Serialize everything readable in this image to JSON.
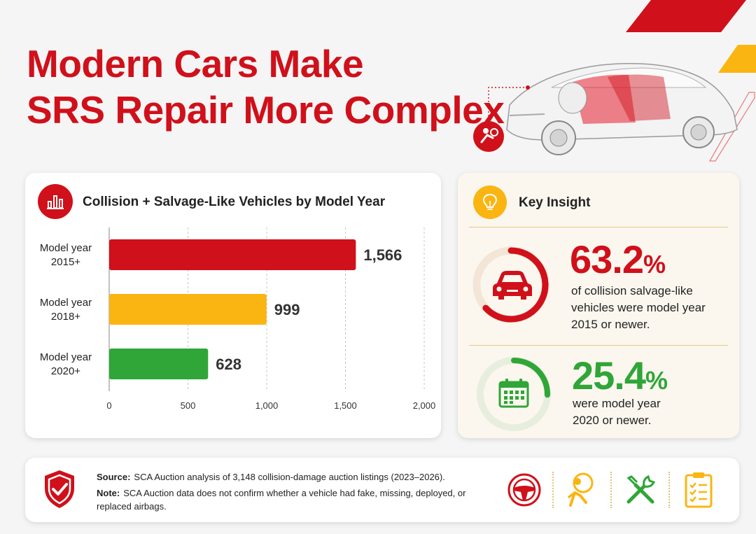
{
  "header": {
    "title_line1": "Modern Cars Make",
    "title_line2": "SRS Repair More Complex"
  },
  "colors": {
    "red": "#d0101a",
    "yellow": "#fbb512",
    "green": "#2fa637"
  },
  "chart_card": {
    "title": "Collision + Salvage-Like Vehicles by Model Year",
    "icon": "bar-chart-icon"
  },
  "chart_data": {
    "type": "bar",
    "orientation": "horizontal",
    "title": "Collision + Salvage-Like Vehicles by Model Year",
    "categories": [
      [
        "Model year",
        "2015+"
      ],
      [
        "Model year",
        "2018+"
      ],
      [
        "Model year",
        "2020+"
      ]
    ],
    "values": [
      1566,
      999,
      628
    ],
    "value_labels": [
      "1,566",
      "999",
      "628"
    ],
    "colors": [
      "#d0101a",
      "#fbb512",
      "#2fa637"
    ],
    "xlim": [
      0,
      2000
    ],
    "xticks": [
      0,
      500,
      1000,
      1500,
      2000
    ],
    "xtick_labels": [
      "0",
      "500",
      "1,000",
      "1,500",
      "2,000"
    ],
    "grid": true
  },
  "insight": {
    "title": "Key Insight",
    "icon": "lightbulb-icon",
    "items": [
      {
        "value": "63.2",
        "unit": "%",
        "fraction": 0.632,
        "line1": "of collision salvage-like",
        "line2": "vehicles were model year",
        "line3": "2015 or newer.",
        "icon": "car-icon",
        "color": "#d0101a"
      },
      {
        "value": "25.4",
        "unit": "%",
        "fraction": 0.254,
        "line1": "were model year",
        "line2": "2020 or newer.",
        "icon": "calendar-icon",
        "color": "#2fa637"
      }
    ]
  },
  "footer": {
    "source_label": "Source:",
    "source_text": "SCA Auction analysis of 3,148 collision-damage auction listings (2023–2026).",
    "note_label": "Note:",
    "note_text": "SCA Auction data does not confirm whether a vehicle had fake, missing, deployed, or replaced airbags.",
    "icons": [
      "shield-check-icon",
      "steering-wheel-icon",
      "airbag-person-icon",
      "tools-icon",
      "checklist-icon"
    ]
  }
}
